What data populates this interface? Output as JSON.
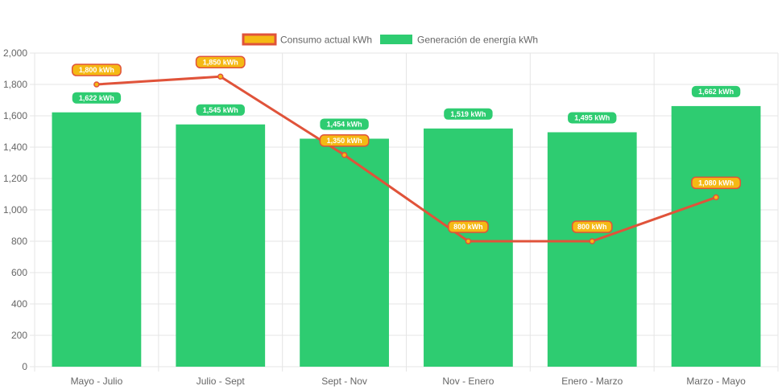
{
  "chart_data": {
    "type": "bar",
    "categories": [
      "Mayo - Julio",
      "Julio - Sept",
      "Sept - Nov",
      "Nov - Enero",
      "Enero - Marzo",
      "Marzo - Mayo"
    ],
    "ylim": [
      0,
      2000
    ],
    "yticks": [
      0,
      200,
      400,
      600,
      800,
      1000,
      1200,
      1400,
      1600,
      1800,
      2000
    ],
    "ytick_labels": [
      "0",
      "200",
      "400",
      "600",
      "800",
      "1,000",
      "1,200",
      "1,400",
      "1,600",
      "1,800",
      "2,000"
    ],
    "grid": true,
    "legend": "top-center",
    "series": [
      {
        "name": "Consumo actual kWh",
        "type": "line",
        "color": "#e0533a",
        "point_color": "#f5b914",
        "values": [
          1800,
          1850,
          1350,
          800,
          800,
          1080
        ],
        "labels": [
          "1,800 kWh",
          "1,850 kWh",
          "1,350 kWh",
          "800 kWh",
          "800 kWh",
          "1,080 kWh"
        ]
      },
      {
        "name": "Generación de energía kWh",
        "type": "bar",
        "color": "#2ecc71",
        "values": [
          1622,
          1545,
          1454,
          1519,
          1495,
          1662
        ],
        "labels": [
          "1,622 kWh",
          "1,545 kWh",
          "1,454 kWh",
          "1,519 kWh",
          "1,495 kWh",
          "1,662 kWh"
        ]
      }
    ]
  }
}
